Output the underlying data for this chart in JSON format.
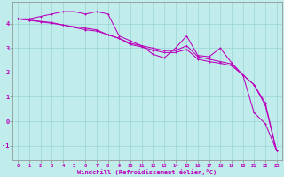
{
  "xlabel": "Windchill (Refroidissement éolien,°C)",
  "bg_color": "#c0ecec",
  "grid_color": "#a0d8d8",
  "line_color": "#bb00bb",
  "spine_color": "#888888",
  "xlim": [
    -0.5,
    23.5
  ],
  "ylim": [
    -1.6,
    4.9
  ],
  "yticks": [
    -1,
    0,
    1,
    2,
    3,
    4
  ],
  "xticks": [
    0,
    1,
    2,
    3,
    4,
    5,
    6,
    7,
    8,
    9,
    10,
    11,
    12,
    13,
    14,
    15,
    16,
    17,
    18,
    19,
    20,
    21,
    22,
    23
  ],
  "line1_x": [
    0,
    1,
    2,
    3,
    4,
    5,
    6,
    7,
    8,
    9,
    10,
    11,
    12,
    13,
    14,
    15,
    16,
    17,
    18,
    19,
    20,
    21,
    22,
    23
  ],
  "line1_y": [
    4.2,
    4.2,
    4.3,
    4.4,
    4.5,
    4.5,
    4.4,
    4.5,
    4.4,
    3.5,
    3.3,
    3.1,
    2.75,
    2.6,
    3.0,
    3.5,
    2.7,
    2.65,
    3.0,
    2.4,
    1.9,
    0.35,
    -0.1,
    -1.2
  ],
  "line2_x": [
    0,
    1,
    2,
    3,
    4,
    5,
    6,
    7,
    8,
    9,
    10,
    11,
    12,
    13,
    14,
    15,
    16,
    17,
    18,
    19,
    20,
    21,
    22,
    23
  ],
  "line2_y": [
    4.2,
    4.15,
    4.1,
    4.05,
    3.95,
    3.85,
    3.75,
    3.7,
    3.55,
    3.4,
    3.2,
    3.1,
    3.0,
    2.9,
    2.9,
    3.1,
    2.65,
    2.55,
    2.45,
    2.35,
    1.9,
    1.5,
    0.65,
    -1.2
  ],
  "line3_x": [
    0,
    1,
    2,
    3,
    4,
    5,
    6,
    7,
    8,
    9,
    10,
    11,
    12,
    13,
    14,
    15,
    16,
    17,
    18,
    19,
    20,
    21,
    22,
    23
  ],
  "line3_y": [
    4.2,
    4.15,
    4.08,
    4.02,
    3.95,
    3.88,
    3.82,
    3.75,
    3.55,
    3.4,
    3.15,
    3.05,
    2.92,
    2.82,
    2.82,
    2.95,
    2.55,
    2.45,
    2.38,
    2.28,
    1.9,
    1.5,
    0.75,
    -1.2
  ]
}
